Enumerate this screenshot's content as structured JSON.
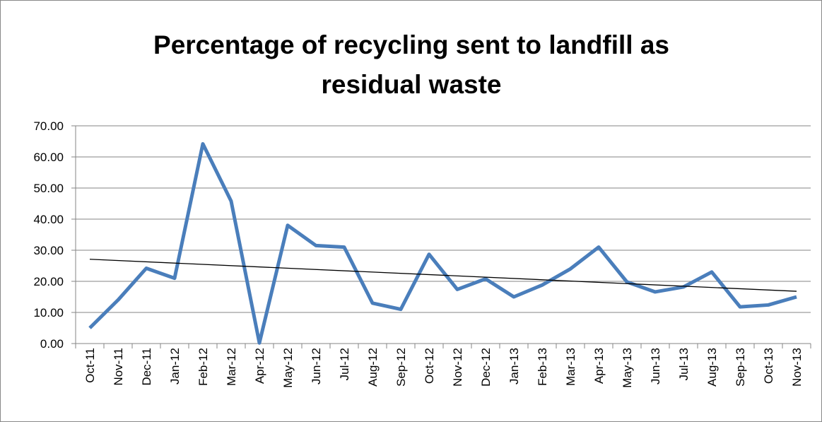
{
  "chart_data": {
    "type": "line",
    "title": [
      "Percentage of recycling sent to landfill as",
      "residual waste"
    ],
    "categories": [
      "Oct-11",
      "Nov-11",
      "Dec-11",
      "Jan-12",
      "Feb-12",
      "Mar-12",
      "Apr-12",
      "May-12",
      "Jun-12",
      "Jul-12",
      "Aug-12",
      "Sep-12",
      "Oct-12",
      "Nov-12",
      "Dec-12",
      "Jan-13",
      "Feb-13",
      "Mar-13",
      "Apr-13",
      "May-13",
      "Jun-13",
      "Jul-13",
      "Aug-13",
      "Sep-13",
      "Oct-13",
      "Nov-13"
    ],
    "values": [
      5.0,
      14.0,
      24.2,
      21.0,
      64.2,
      45.8,
      0.2,
      38.0,
      31.5,
      31.0,
      13.0,
      11.0,
      28.7,
      17.4,
      20.8,
      15.0,
      18.8,
      24.0,
      31.0,
      19.8,
      16.6,
      18.2,
      23.0,
      11.8,
      12.4,
      15.0
    ],
    "color": "#4a7ebb",
    "trend_line": {
      "color": "#000000",
      "start": 27.1,
      "end": 16.8
    },
    "ylim": [
      0,
      70
    ],
    "yticks": [
      {
        "value": 0,
        "label": "0.00"
      },
      {
        "value": 10,
        "label": "10.00"
      },
      {
        "value": 20,
        "label": "20.00"
      },
      {
        "value": 30,
        "label": "30.00"
      },
      {
        "value": 40,
        "label": "40.00"
      },
      {
        "value": 50,
        "label": "50.00"
      },
      {
        "value": 60,
        "label": "60.00"
      },
      {
        "value": 70,
        "label": "70.00"
      }
    ],
    "grid": true
  }
}
